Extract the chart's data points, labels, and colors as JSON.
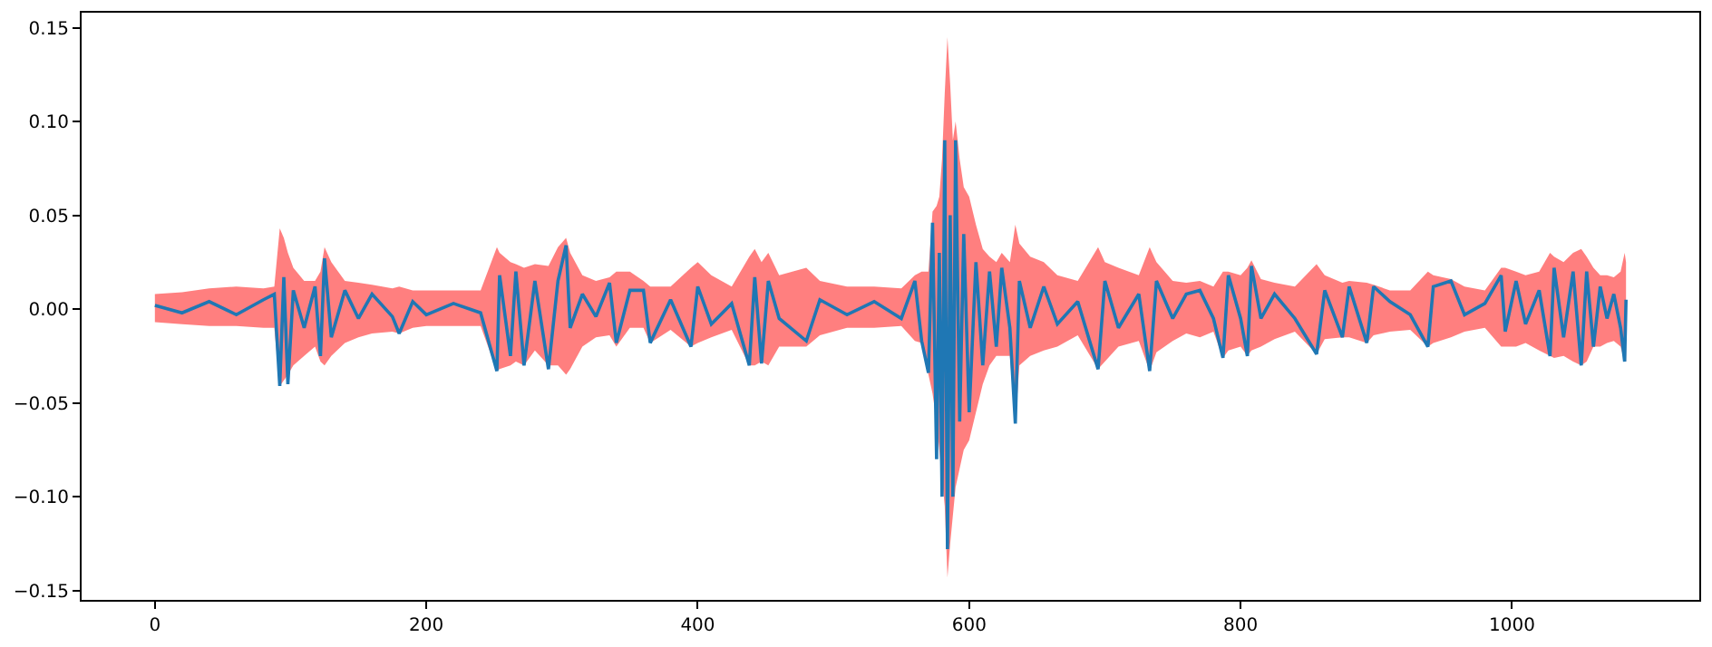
{
  "chart_data": {
    "type": "line",
    "marker": "none",
    "line_style": "solid",
    "xlim": [
      -54,
      1138
    ],
    "xticks": [
      0,
      200,
      400,
      600,
      800,
      1000
    ],
    "ylim": [
      -0.155,
      0.158
    ],
    "yticks": [
      {
        "value": -0.15,
        "label": "−0.15"
      },
      {
        "value": -0.1,
        "label": "−0.10"
      },
      {
        "value": -0.05,
        "label": "−0.05"
      },
      {
        "value": 0,
        "label": "0.00"
      },
      {
        "value": 0.05,
        "label": "0.05"
      },
      {
        "value": 0.1,
        "label": "0.10"
      },
      {
        "value": 0.15,
        "label": "0.15"
      }
    ],
    "series": [
      {
        "color": "#1f77b4",
        "x": [
          0,
          20,
          40,
          60,
          80,
          88,
          92,
          95,
          98,
          102,
          110,
          118,
          122,
          125,
          130,
          140,
          150,
          160,
          175,
          180,
          190,
          200,
          220,
          240,
          252,
          254,
          262,
          266,
          272,
          280,
          290,
          297,
          303,
          306,
          315,
          325,
          335,
          340,
          350,
          360,
          365,
          380,
          395,
          400,
          410,
          425,
          438,
          442,
          447,
          452,
          460,
          480,
          490,
          510,
          530,
          550,
          560,
          565,
          570,
          573,
          576,
          578,
          580,
          582,
          584,
          586,
          588,
          590,
          593,
          596,
          600,
          605,
          610,
          615,
          620,
          624,
          630,
          634,
          637,
          645,
          655,
          665,
          680,
          695,
          700,
          710,
          725,
          733,
          738,
          750,
          760,
          770,
          780,
          787,
          791,
          800,
          805,
          808,
          815,
          825,
          840,
          856,
          862,
          875,
          880,
          893,
          898,
          910,
          925,
          938,
          942,
          955,
          965,
          980,
          992,
          995,
          1003,
          1010,
          1020,
          1028,
          1031,
          1038,
          1045,
          1051,
          1055,
          1060,
          1065,
          1070,
          1075,
          1080,
          1083,
          1084
        ],
        "values": [
          0.002,
          -0.002,
          0.004,
          -0.003,
          0.005,
          0.008,
          -0.041,
          0.017,
          -0.04,
          0.01,
          -0.01,
          0.012,
          -0.025,
          0.027,
          -0.015,
          0.01,
          -0.005,
          0.008,
          -0.004,
          -0.013,
          0.004,
          -0.003,
          0.003,
          -0.002,
          -0.033,
          0.018,
          -0.025,
          0.02,
          -0.03,
          0.015,
          -0.032,
          0.015,
          0.034,
          -0.01,
          0.008,
          -0.004,
          0.014,
          -0.018,
          0.01,
          0.01,
          -0.018,
          0.005,
          -0.02,
          0.012,
          -0.008,
          0.003,
          -0.03,
          0.017,
          -0.029,
          0.015,
          -0.005,
          -0.017,
          0.005,
          -0.003,
          0.004,
          -0.005,
          0.015,
          -0.017,
          -0.034,
          0.046,
          -0.08,
          0.03,
          -0.1,
          0.09,
          -0.128,
          0.05,
          -0.1,
          0.09,
          -0.06,
          0.04,
          -0.055,
          0.025,
          -0.03,
          0.02,
          -0.02,
          0.022,
          -0.01,
          -0.061,
          0.015,
          -0.01,
          0.012,
          -0.008,
          0.004,
          -0.032,
          0.015,
          -0.01,
          0.008,
          -0.033,
          0.015,
          -0.005,
          0.008,
          0.01,
          -0.005,
          -0.026,
          0.018,
          -0.005,
          -0.025,
          0.023,
          -0.005,
          0.008,
          -0.005,
          -0.024,
          0.01,
          -0.015,
          0.012,
          -0.018,
          0.012,
          0.004,
          -0.003,
          -0.02,
          0.012,
          0.015,
          -0.003,
          0.003,
          0.018,
          -0.012,
          0.015,
          -0.008,
          0.01,
          -0.025,
          0.022,
          -0.015,
          0.02,
          -0.03,
          0.02,
          -0.02,
          0.012,
          -0.005,
          0.008,
          -0.01,
          -0.028,
          0.005
        ],
        "upper": [
          0.008,
          0.009,
          0.011,
          0.012,
          0.011,
          0.012,
          0.043,
          0.038,
          0.03,
          0.022,
          0.015,
          0.015,
          0.02,
          0.033,
          0.025,
          0.015,
          0.014,
          0.013,
          0.011,
          0.012,
          0.01,
          0.01,
          0.01,
          0.01,
          0.033,
          0.03,
          0.025,
          0.024,
          0.022,
          0.024,
          0.023,
          0.033,
          0.038,
          0.03,
          0.018,
          0.015,
          0.017,
          0.02,
          0.02,
          0.015,
          0.012,
          0.012,
          0.022,
          0.025,
          0.018,
          0.012,
          0.028,
          0.032,
          0.025,
          0.03,
          0.018,
          0.022,
          0.015,
          0.012,
          0.012,
          0.011,
          0.018,
          0.02,
          0.02,
          0.052,
          0.055,
          0.06,
          0.08,
          0.115,
          0.145,
          0.12,
          0.09,
          0.1,
          0.08,
          0.065,
          0.06,
          0.045,
          0.032,
          0.028,
          0.025,
          0.03,
          0.025,
          0.045,
          0.035,
          0.028,
          0.025,
          0.018,
          0.015,
          0.033,
          0.025,
          0.022,
          0.018,
          0.033,
          0.025,
          0.015,
          0.014,
          0.015,
          0.012,
          0.02,
          0.02,
          0.018,
          0.022,
          0.026,
          0.016,
          0.014,
          0.012,
          0.024,
          0.018,
          0.014,
          0.015,
          0.014,
          0.013,
          0.01,
          0.01,
          0.02,
          0.018,
          0.016,
          0.012,
          0.01,
          0.022,
          0.022,
          0.02,
          0.018,
          0.02,
          0.03,
          0.028,
          0.025,
          0.03,
          0.032,
          0.028,
          0.022,
          0.018,
          0.018,
          0.017,
          0.02,
          0.03,
          0.025
        ],
        "lower": [
          -0.007,
          -0.008,
          -0.009,
          -0.009,
          -0.01,
          -0.01,
          -0.041,
          -0.038,
          -0.035,
          -0.03,
          -0.025,
          -0.02,
          -0.028,
          -0.03,
          -0.025,
          -0.018,
          -0.015,
          -0.013,
          -0.012,
          -0.013,
          -0.01,
          -0.009,
          -0.009,
          -0.009,
          -0.033,
          -0.032,
          -0.03,
          -0.028,
          -0.03,
          -0.022,
          -0.03,
          -0.03,
          -0.035,
          -0.032,
          -0.02,
          -0.015,
          -0.014,
          -0.02,
          -0.01,
          -0.01,
          -0.018,
          -0.011,
          -0.02,
          -0.018,
          -0.015,
          -0.011,
          -0.03,
          -0.03,
          -0.028,
          -0.03,
          -0.02,
          -0.02,
          -0.014,
          -0.01,
          -0.01,
          -0.009,
          -0.017,
          -0.018,
          -0.035,
          -0.045,
          -0.06,
          -0.075,
          -0.09,
          -0.105,
          -0.143,
          -0.125,
          -0.11,
          -0.095,
          -0.085,
          -0.075,
          -0.07,
          -0.055,
          -0.04,
          -0.03,
          -0.025,
          -0.025,
          -0.025,
          -0.061,
          -0.03,
          -0.025,
          -0.022,
          -0.02,
          -0.014,
          -0.032,
          -0.028,
          -0.02,
          -0.017,
          -0.033,
          -0.023,
          -0.017,
          -0.013,
          -0.015,
          -0.012,
          -0.026,
          -0.022,
          -0.02,
          -0.025,
          -0.022,
          -0.02,
          -0.016,
          -0.012,
          -0.024,
          -0.016,
          -0.015,
          -0.015,
          -0.018,
          -0.014,
          -0.012,
          -0.011,
          -0.02,
          -0.018,
          -0.015,
          -0.012,
          -0.01,
          -0.02,
          -0.02,
          -0.02,
          -0.018,
          -0.022,
          -0.025,
          -0.026,
          -0.025,
          -0.028,
          -0.03,
          -0.028,
          -0.02,
          -0.02,
          -0.018,
          -0.017,
          -0.02,
          -0.028,
          -0.028
        ]
      }
    ]
  }
}
